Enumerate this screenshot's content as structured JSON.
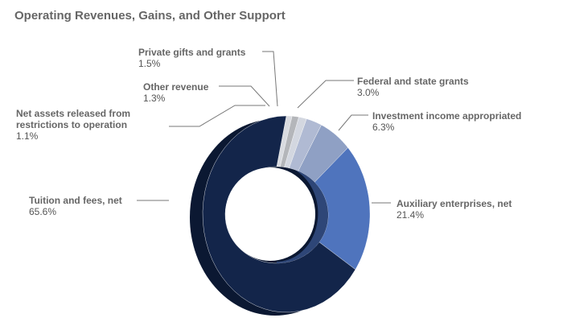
{
  "chart_data": {
    "type": "pie",
    "variant": "3d-donut",
    "title": "Operating Revenues, Gains, and Other Support",
    "slices": [
      {
        "label": "Net assets released from restrictions to operation",
        "value": 1.1,
        "display": "1.1%",
        "color": "#d9dbe0"
      },
      {
        "label": "Other revenue",
        "value": 1.3,
        "display": "1.3%",
        "color": "#b4b6ba"
      },
      {
        "label": "Private gifts and grants",
        "value": 1.5,
        "display": "1.5%",
        "color": "#d3d7e0"
      },
      {
        "label": "Federal and state grants",
        "value": 3.0,
        "display": "3.0%",
        "color": "#b0bad3"
      },
      {
        "label": "Investment income appropriated",
        "value": 6.3,
        "display": "6.3%",
        "color": "#8fa0c4"
      },
      {
        "label": "Auxiliary enterprises, net",
        "value": 21.4,
        "display": "21.4%",
        "color": "#4f74bd"
      },
      {
        "label": "Tuition and fees, net",
        "value": 65.6,
        "display": "65.6%",
        "color": "#13254a"
      }
    ]
  }
}
